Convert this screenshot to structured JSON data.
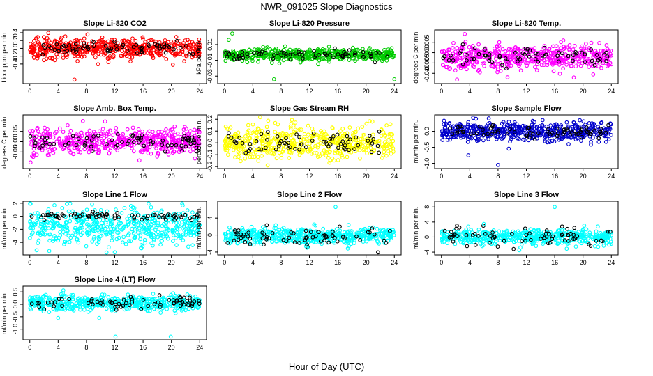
{
  "figure": {
    "title": "NWR_091025  Slope Diagnostics",
    "xlabel": "Hour of Day (UTC)"
  },
  "chart_data": [
    {
      "type": "scatter",
      "title": "Slope Li-820 CO2",
      "ylabel": "Licor ppm per min.",
      "color": "#ff0000",
      "xlim": [
        0,
        24
      ],
      "xticks": [
        0,
        4,
        8,
        12,
        16,
        20,
        24
      ],
      "ylim": [
        -0.85,
        0.42
      ],
      "yticks": [
        -0.4,
        -0.2,
        0.0,
        0.2,
        0.4
      ],
      "yticklabels": [
        "-0.4",
        "-0.2",
        "0.0",
        "0.2",
        "0.4"
      ],
      "center": 0.0,
      "spread": 0.12,
      "black_spread": 0.08,
      "outliers": [
        {
          "x": 6.3,
          "y": -0.8
        },
        {
          "x": 11.1,
          "y": -0.35
        },
        {
          "x": 2.0,
          "y": -0.3
        }
      ]
    },
    {
      "type": "scatter",
      "title": "Slope Li-820 Pressure",
      "ylabel": "kPa per min.",
      "color": "#00cc00",
      "xlim": [
        0,
        24
      ],
      "xticks": [
        0,
        4,
        8,
        12,
        16,
        20,
        24
      ],
      "ylim": [
        -0.037,
        0.026
      ],
      "yticks": [
        -0.03,
        -0.01,
        0.01
      ],
      "yticklabels": [
        "-0.03",
        "-0.01",
        "0.01"
      ],
      "center": -0.003,
      "spread": 0.004,
      "black_spread": 0.003,
      "outliers": [
        {
          "x": 1.1,
          "y": 0.024
        },
        {
          "x": 7.0,
          "y": -0.034
        },
        {
          "x": 24.0,
          "y": -0.034
        },
        {
          "x": 0.6,
          "y": 0.016
        }
      ]
    },
    {
      "type": "scatter",
      "title": "Slope Li-820 Temp.",
      "ylabel": "degrees C per min.",
      "color": "#ff00ff",
      "xlim": [
        0,
        24
      ],
      "xticks": [
        0,
        4,
        8,
        12,
        16,
        20,
        24
      ],
      "ylim": [
        -0.014,
        0.01
      ],
      "yticks": [
        -0.01,
        -0.005,
        0.0,
        0.005
      ],
      "yticklabels": [
        "-0.010",
        "-0.005",
        "0.000",
        "0.005"
      ],
      "center": -0.002,
      "spread": 0.003,
      "black_spread": 0.002,
      "outliers": [
        {
          "x": 2.2,
          "y": -0.013
        },
        {
          "x": 3.3,
          "y": 0.009
        },
        {
          "x": 18.7,
          "y": -0.012
        }
      ]
    },
    {
      "type": "scatter",
      "title": "Slope Amb. Box Temp.",
      "ylabel": "degrees C per min.",
      "color": "#ff00ff",
      "xlim": [
        0,
        24
      ],
      "xticks": [
        0,
        4,
        8,
        12,
        16,
        20,
        24
      ],
      "ylim": [
        -0.12,
        0.12
      ],
      "yticks": [
        -0.05,
        0.0,
        0.05
      ],
      "yticklabels": [
        "-0.05",
        "0.00",
        "0.05"
      ],
      "center": 0.0,
      "spread": 0.03,
      "black_spread": 0.02,
      "outliers": [
        {
          "x": 7.5,
          "y": 0.1
        },
        {
          "x": 0.1,
          "y": -0.1
        }
      ]
    },
    {
      "type": "scatter",
      "title": "Slope Gas Stream RH",
      "ylabel": "percent per min.",
      "color": "#ffff00",
      "xlim": [
        0,
        24
      ],
      "xticks": [
        0,
        4,
        8,
        12,
        16,
        20,
        24
      ],
      "ylim": [
        -0.2,
        0.22
      ],
      "yticks": [
        -0.2,
        -0.1,
        0.0,
        0.1,
        0.2
      ],
      "yticklabels": [
        "-0.2",
        "-0.1",
        "0.0",
        "0.1",
        "0.2"
      ],
      "center": 0.0,
      "spread": 0.07,
      "black_spread": 0.05,
      "outliers": [
        {
          "x": 6.1,
          "y": -0.19
        },
        {
          "x": 20.9,
          "y": 0.18
        }
      ]
    },
    {
      "type": "scatter",
      "title": "Slope Sample Flow",
      "ylabel": "ml/min per min.",
      "color": "#0000cc",
      "xlim": [
        0,
        24
      ],
      "xticks": [
        0,
        4,
        8,
        12,
        16,
        20,
        24
      ],
      "ylim": [
        -1.1,
        0.45
      ],
      "yticks": [
        -1.0,
        -0.5,
        0.0
      ],
      "yticklabels": [
        "-1.0",
        "-0.5",
        "0.0"
      ],
      "center": 0.0,
      "spread": 0.15,
      "black_spread": 0.1,
      "outliers": [
        {
          "x": 8.0,
          "y": -1.05
        },
        {
          "x": 3.8,
          "y": -0.75
        },
        {
          "x": 14.3,
          "y": 0.35
        }
      ]
    },
    {
      "type": "scatter",
      "title": "Slope Line 1 Flow",
      "ylabel": "ml/min per min.",
      "color": "#00ffff",
      "xlim": [
        0,
        24
      ],
      "xticks": [
        0,
        4,
        8,
        12,
        16,
        20,
        24
      ],
      "ylim": [
        -5.6,
        2.0
      ],
      "yticks": [
        -4,
        -2,
        0,
        2
      ],
      "yticklabels": [
        "-4",
        "-2",
        "0",
        "2"
      ],
      "center": -1.6,
      "spread": 1.3,
      "black_spread": 0.25,
      "outliers": [
        {
          "x": 8.8,
          "y": 1.8
        },
        {
          "x": 12.0,
          "y": -5.5
        }
      ]
    },
    {
      "type": "scatter",
      "title": "Slope Line 2 Flow",
      "ylabel": "ml/min per min.",
      "color": "#00ffff",
      "xlim": [
        0,
        24
      ],
      "xticks": [
        0,
        4,
        8,
        12,
        16,
        20,
        24
      ],
      "ylim": [
        -4.2,
        7.5
      ],
      "yticks": [
        -4,
        0,
        4
      ],
      "yticklabels": [
        "-4",
        "0",
        "4"
      ],
      "center": -0.2,
      "spread": 0.9,
      "black_spread": 1.2,
      "outliers": [
        {
          "x": 15.7,
          "y": 6.6
        },
        {
          "x": 11.7,
          "y": -3.0
        }
      ]
    },
    {
      "type": "scatter",
      "title": "Slope Line 3 Flow",
      "ylabel": "ml/min per min.",
      "color": "#00ffff",
      "xlim": [
        0,
        24
      ],
      "xticks": [
        0,
        4,
        8,
        12,
        16,
        20,
        24
      ],
      "ylim": [
        -4.2,
        9.0
      ],
      "yticks": [
        -4,
        0,
        4,
        8
      ],
      "yticklabels": [
        "-4",
        "0",
        "4",
        "8"
      ],
      "center": 0.0,
      "spread": 1.0,
      "black_spread": 1.3,
      "outliers": [
        {
          "x": 16.0,
          "y": 8.0
        },
        {
          "x": 6.0,
          "y": 3.5
        },
        {
          "x": 11.0,
          "y": -3.5
        }
      ]
    },
    {
      "type": "scatter",
      "title": "Slope Line 4 (LT) Flow",
      "ylabel": "ml/min per min.",
      "color": "#00ffff",
      "xlim": [
        0,
        24
      ],
      "xticks": [
        0,
        4,
        8,
        12,
        16,
        20,
        24
      ],
      "ylim": [
        -1.35,
        0.65
      ],
      "yticks": [
        -1.0,
        -0.5,
        0.0,
        0.5
      ],
      "yticklabels": [
        "-1.0",
        "-0.5",
        "0.0",
        "0.5"
      ],
      "center": 0.05,
      "spread": 0.15,
      "black_spread": 0.12,
      "outliers": [
        {
          "x": 12.1,
          "y": -1.3
        },
        {
          "x": 19.9,
          "y": -1.3
        },
        {
          "x": 4.0,
          "y": -0.55
        },
        {
          "x": 9.8,
          "y": -0.55
        }
      ]
    }
  ]
}
